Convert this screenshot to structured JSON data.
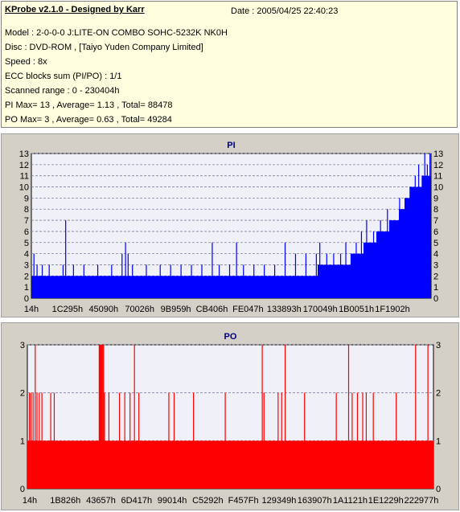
{
  "header": {
    "title": "KProbe v2.1.0 - Designed by Karr",
    "date": "Date : 2005/04/25 22:40:23",
    "lines": [
      "Model : 2-0-0-0 J:LITE-ON COMBO SOHC-5232K NK0H",
      "Disc : DVD-ROM ,  [Taiyo Yuden Company Limited]",
      "Speed : 8x",
      "ECC blocks sum (PI/PO) : 1/1",
      "Scanned range : 0 - 230404h",
      "PI Max= 13 , Average= 1.13 , Total= 88478",
      "PO Max= 3 , Average= 0.63 , Total= 49284"
    ]
  },
  "colors": {
    "pi": "#0000ff",
    "po": "#ff0000",
    "plot_bg": "#f0f0f8",
    "panel_bg": "#d4d0c8",
    "info_bg": "#ffffdf",
    "title": "#000080"
  },
  "chart_data": [
    {
      "type": "bar",
      "title": "PI",
      "ylim": [
        0,
        13
      ],
      "yticks": [
        0,
        1,
        2,
        3,
        4,
        5,
        6,
        7,
        8,
        9,
        10,
        11,
        12,
        13
      ],
      "xlim": [
        0,
        230404
      ],
      "xtick_labels": [
        "14h",
        "1C295h",
        "45090h",
        "70026h",
        "9B959h",
        "CB406h",
        "FE047h",
        "133893h",
        "170049h",
        "1B0051h",
        "1F1902h"
      ],
      "grid": true,
      "baseline": [
        {
          "x": 0,
          "y": 2
        },
        {
          "x": 130000,
          "y": 2
        },
        {
          "x": 150000,
          "y": 2
        },
        {
          "x": 180000,
          "y": 3
        },
        {
          "x": 195000,
          "y": 5
        },
        {
          "x": 210000,
          "y": 7
        },
        {
          "x": 220000,
          "y": 10
        },
        {
          "x": 230404,
          "y": 11
        }
      ],
      "spikes": [
        {
          "x": 1200,
          "y": 4
        },
        {
          "x": 3000,
          "y": 3
        },
        {
          "x": 6000,
          "y": 3
        },
        {
          "x": 10000,
          "y": 3
        },
        {
          "x": 18000,
          "y": 3
        },
        {
          "x": 19500,
          "y": 7
        },
        {
          "x": 24000,
          "y": 3
        },
        {
          "x": 30000,
          "y": 3
        },
        {
          "x": 38000,
          "y": 3
        },
        {
          "x": 46000,
          "y": 3
        },
        {
          "x": 52000,
          "y": 4
        },
        {
          "x": 54000,
          "y": 5
        },
        {
          "x": 55500,
          "y": 4
        },
        {
          "x": 58000,
          "y": 3
        },
        {
          "x": 66000,
          "y": 3
        },
        {
          "x": 74000,
          "y": 3
        },
        {
          "x": 80000,
          "y": 3
        },
        {
          "x": 86000,
          "y": 3
        },
        {
          "x": 92000,
          "y": 3
        },
        {
          "x": 98000,
          "y": 3
        },
        {
          "x": 104000,
          "y": 5
        },
        {
          "x": 108000,
          "y": 3
        },
        {
          "x": 114000,
          "y": 3
        },
        {
          "x": 118000,
          "y": 5
        },
        {
          "x": 122000,
          "y": 3
        },
        {
          "x": 128000,
          "y": 3
        },
        {
          "x": 134000,
          "y": 3
        },
        {
          "x": 140000,
          "y": 3
        },
        {
          "x": 146000,
          "y": 5
        },
        {
          "x": 152000,
          "y": 4
        },
        {
          "x": 158000,
          "y": 4
        },
        {
          "x": 164000,
          "y": 4
        },
        {
          "x": 166000,
          "y": 5
        },
        {
          "x": 170000,
          "y": 4
        },
        {
          "x": 174000,
          "y": 4
        },
        {
          "x": 178000,
          "y": 4
        },
        {
          "x": 181000,
          "y": 5
        },
        {
          "x": 184000,
          "y": 4
        },
        {
          "x": 187000,
          "y": 5
        },
        {
          "x": 190000,
          "y": 6
        },
        {
          "x": 193000,
          "y": 7
        },
        {
          "x": 197000,
          "y": 6
        },
        {
          "x": 201000,
          "y": 7
        },
        {
          "x": 205000,
          "y": 8
        },
        {
          "x": 208000,
          "y": 7
        },
        {
          "x": 212000,
          "y": 9
        },
        {
          "x": 215000,
          "y": 8
        },
        {
          "x": 218000,
          "y": 10
        },
        {
          "x": 221000,
          "y": 11
        },
        {
          "x": 223000,
          "y": 12
        },
        {
          "x": 225000,
          "y": 11
        },
        {
          "x": 226500,
          "y": 13
        },
        {
          "x": 228000,
          "y": 12
        },
        {
          "x": 229500,
          "y": 13
        }
      ]
    },
    {
      "type": "bar",
      "title": "PO",
      "ylim": [
        0,
        3
      ],
      "yticks": [
        0,
        1,
        2,
        3
      ],
      "xlim": [
        0,
        230404
      ],
      "xtick_labels": [
        "14h",
        "1B826h",
        "43657h",
        "6D417h",
        "99014h",
        "C5292h",
        "F457Fh",
        "129349h",
        "163907h",
        "1A1121h",
        "1E1229h",
        "222977h"
      ],
      "grid": true,
      "baseline": [
        {
          "x": 0,
          "y": 1
        },
        {
          "x": 230404,
          "y": 1
        }
      ],
      "spikes": [
        {
          "x": 900,
          "y": 2
        },
        {
          "x": 1800,
          "y": 2
        },
        {
          "x": 3000,
          "y": 2
        },
        {
          "x": 4200,
          "y": 3
        },
        {
          "x": 5200,
          "y": 2
        },
        {
          "x": 6500,
          "y": 2
        },
        {
          "x": 8000,
          "y": 2
        },
        {
          "x": 13000,
          "y": 2
        },
        {
          "x": 15000,
          "y": 2
        },
        {
          "x": 40500,
          "y": 3
        },
        {
          "x": 41000,
          "y": 3
        },
        {
          "x": 41500,
          "y": 3
        },
        {
          "x": 42000,
          "y": 3
        },
        {
          "x": 42500,
          "y": 3
        },
        {
          "x": 43000,
          "y": 3
        },
        {
          "x": 43500,
          "y": 2
        },
        {
          "x": 46000,
          "y": 2
        },
        {
          "x": 52000,
          "y": 2
        },
        {
          "x": 55000,
          "y": 2
        },
        {
          "x": 58000,
          "y": 2
        },
        {
          "x": 60500,
          "y": 3
        },
        {
          "x": 63000,
          "y": 2
        },
        {
          "x": 80000,
          "y": 2
        },
        {
          "x": 83000,
          "y": 2
        },
        {
          "x": 94000,
          "y": 2
        },
        {
          "x": 112000,
          "y": 2
        },
        {
          "x": 133000,
          "y": 3
        },
        {
          "x": 134000,
          "y": 2
        },
        {
          "x": 142000,
          "y": 2
        },
        {
          "x": 144000,
          "y": 2
        },
        {
          "x": 146000,
          "y": 3
        },
        {
          "x": 157000,
          "y": 2
        },
        {
          "x": 175000,
          "y": 2
        },
        {
          "x": 182000,
          "y": 3
        },
        {
          "x": 184000,
          "y": 2
        },
        {
          "x": 187000,
          "y": 2
        },
        {
          "x": 190000,
          "y": 2
        },
        {
          "x": 192000,
          "y": 2
        },
        {
          "x": 196000,
          "y": 2
        },
        {
          "x": 209000,
          "y": 2
        },
        {
          "x": 220000,
          "y": 3
        },
        {
          "x": 227000,
          "y": 3
        }
      ]
    }
  ]
}
